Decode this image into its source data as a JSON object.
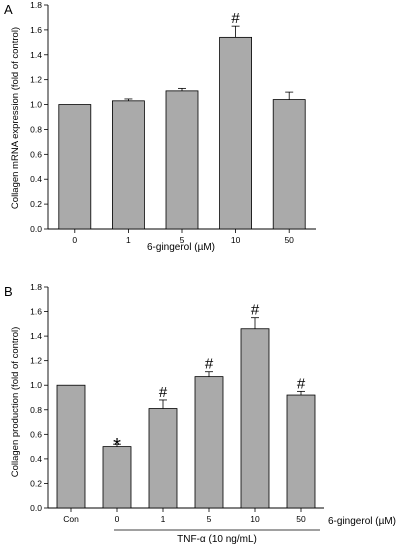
{
  "chart_data": [
    {
      "panel": "A",
      "type": "bar",
      "categories": [
        "0",
        "1",
        "5",
        "10",
        "50"
      ],
      "values": [
        1.0,
        1.03,
        1.11,
        1.54,
        1.04
      ],
      "errors": [
        0.0,
        0.015,
        0.02,
        0.09,
        0.06
      ],
      "annotations": [
        "",
        "",
        "",
        "#",
        ""
      ],
      "xlabel": "6-gingerol (µM)",
      "ylabel": "Collagen mRNA expression (fold of control)",
      "ylim": [
        0,
        1.8
      ],
      "yticks": [
        "0.0",
        "0.2",
        "0.4",
        "0.6",
        "0.8",
        "1.0",
        "1.2",
        "1.4",
        "1.6",
        "1.8"
      ],
      "bar_color": "#aaaaaa"
    },
    {
      "panel": "B",
      "type": "bar",
      "categories": [
        "Con",
        "0",
        "1",
        "5",
        "10",
        "50"
      ],
      "values": [
        1.0,
        0.5,
        0.81,
        1.07,
        1.46,
        0.92
      ],
      "errors": [
        0.0,
        0.02,
        0.07,
        0.04,
        0.09,
        0.03
      ],
      "annotations": [
        "",
        "*",
        "#",
        "#",
        "#",
        "#"
      ],
      "xlabel": "6-gingerol (µM)",
      "group_label": "TNF-α (10 ng/mL)",
      "ylabel": "Collagen production (fold of control)",
      "ylim": [
        0,
        1.8
      ],
      "yticks": [
        "0.0",
        "0.2",
        "0.4",
        "0.6",
        "0.8",
        "1.0",
        "1.2",
        "1.4",
        "1.6",
        "1.8"
      ],
      "bar_color": "#aaaaaa"
    }
  ]
}
